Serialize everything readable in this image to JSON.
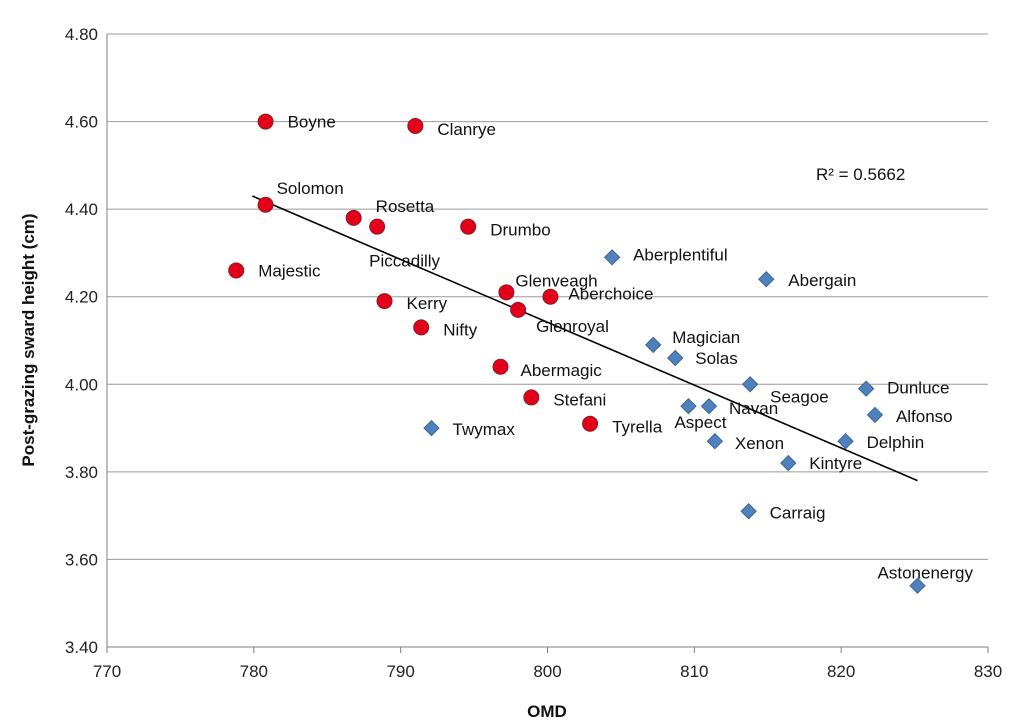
{
  "chart_data": {
    "type": "scatter",
    "xlabel": "OMD",
    "ylabel": "Post-grazing sward height (cm)",
    "xlim": [
      770,
      830
    ],
    "ylim": [
      3.4,
      4.8
    ],
    "xticks": [
      770,
      780,
      790,
      800,
      810,
      820,
      830
    ],
    "xtick_labels": [
      "770",
      "780",
      "790",
      "800",
      "810",
      "820",
      "830"
    ],
    "yticks": [
      3.4,
      3.6,
      3.8,
      4.0,
      4.2,
      4.4,
      4.6,
      4.8
    ],
    "ytick_labels": [
      "3.40",
      "3.60",
      "3.80",
      "4.00",
      "4.20",
      "4.40",
      "4.60",
      "4.80"
    ],
    "grid": "horizontal",
    "colors": {
      "circle_fill": "#e3001b",
      "circle_stroke": "#8c1d1d",
      "diamond_fill": "#4f81bd",
      "diamond_stroke": "#3a6698",
      "trendline": "#000000",
      "gridline": "#9a9a9a"
    },
    "trendline": {
      "x": [
        779.9,
        825.2
      ],
      "y": [
        4.43,
        3.78
      ],
      "r2_label": "R² = 0.5662"
    },
    "series": [
      {
        "marker": "circle",
        "points": [
          {
            "label": "Boyne",
            "x": 780.8,
            "y": 4.6
          },
          {
            "label": "Clanrye",
            "x": 791.0,
            "y": 4.59
          },
          {
            "label": "Solomon",
            "x": 780.8,
            "y": 4.41
          },
          {
            "label": "Rosetta",
            "x": 786.8,
            "y": 4.38
          },
          {
            "label": "Piccadilly",
            "x": 788.4,
            "y": 4.36
          },
          {
            "label": "Drumbo",
            "x": 794.6,
            "y": 4.36
          },
          {
            "label": "Majestic",
            "x": 778.8,
            "y": 4.26
          },
          {
            "label": "Kerry",
            "x": 788.9,
            "y": 4.19
          },
          {
            "label": "Nifty",
            "x": 791.4,
            "y": 4.13
          },
          {
            "label": "Glenveagh",
            "x": 797.2,
            "y": 4.21
          },
          {
            "label": "Aberchoice",
            "x": 800.2,
            "y": 4.2
          },
          {
            "label": "Glenroyal",
            "x": 798.0,
            "y": 4.17
          },
          {
            "label": "Abermagic",
            "x": 796.8,
            "y": 4.04
          },
          {
            "label": "Stefani",
            "x": 798.9,
            "y": 3.97
          },
          {
            "label": "Tyrella",
            "x": 802.9,
            "y": 3.91
          }
        ]
      },
      {
        "marker": "diamond",
        "points": [
          {
            "label": "Twymax",
            "x": 792.1,
            "y": 3.9
          },
          {
            "label": "Aberplentiful",
            "x": 804.4,
            "y": 4.29
          },
          {
            "label": "Abergain",
            "x": 814.9,
            "y": 4.24
          },
          {
            "label": "Magician",
            "x": 807.2,
            "y": 4.09
          },
          {
            "label": "Solas",
            "x": 808.7,
            "y": 4.06
          },
          {
            "label": "Seagoe",
            "x": 813.8,
            "y": 4.0
          },
          {
            "label": "Dunluce",
            "x": 821.7,
            "y": 3.99
          },
          {
            "label": "Alfonso",
            "x": 822.3,
            "y": 3.93
          },
          {
            "label": "Navan",
            "x": 811.0,
            "y": 3.95
          },
          {
            "label": "Aspect",
            "x": 809.6,
            "y": 3.95
          },
          {
            "label": "Xenon",
            "x": 811.4,
            "y": 3.87
          },
          {
            "label": "Delphin",
            "x": 820.3,
            "y": 3.87
          },
          {
            "label": "Kintyre",
            "x": 816.4,
            "y": 3.82
          },
          {
            "label": "Carraig",
            "x": 813.7,
            "y": 3.71
          },
          {
            "label": "Astonenergy",
            "x": 825.2,
            "y": 3.54
          }
        ]
      }
    ]
  }
}
